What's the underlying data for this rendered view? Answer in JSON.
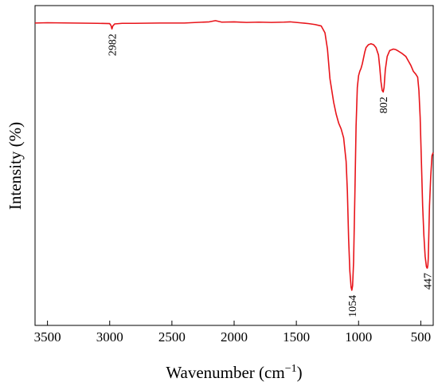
{
  "chart_data": {
    "type": "line",
    "xlabel": "Wavenumber (cm",
    "xlabel_sup": "−1",
    "xlabel_close": ")",
    "ylabel": "Intensity (%)",
    "xlim": [
      3600,
      400
    ],
    "x_reversed": true,
    "ylim": [
      0,
      100
    ],
    "y_ticks_shown": false,
    "x_ticks": [
      3500,
      3000,
      2500,
      2000,
      1500,
      1000,
      500
    ],
    "grid": false,
    "legend": "none",
    "line_color": "#e8141a",
    "series": [
      {
        "x": [
          3600,
          3500,
          3300,
          3100,
          3000,
          2990,
          2982,
          2975,
          2960,
          2900,
          2800,
          2600,
          2400,
          2300,
          2200,
          2150,
          2100,
          2000,
          1900,
          1800,
          1700,
          1600,
          1550,
          1500,
          1450,
          1400,
          1350,
          1300,
          1270,
          1250,
          1230,
          1200,
          1180,
          1160,
          1140,
          1120,
          1100,
          1090,
          1080,
          1070,
          1060,
          1054,
          1048,
          1040,
          1030,
          1020,
          1010,
          1000,
          990,
          980,
          970,
          960,
          950,
          940,
          920,
          900,
          880,
          860,
          840,
          830,
          820,
          810,
          802,
          795,
          785,
          770,
          750,
          720,
          700,
          680,
          650,
          620,
          600,
          580,
          560,
          540,
          525,
          515,
          505,
          495,
          485,
          475,
          465,
          455,
          450,
          447,
          443,
          440,
          430,
          420,
          410,
          400
        ],
        "y": [
          96.8,
          96.9,
          96.8,
          96.7,
          96.6,
          96.0,
          94.8,
          95.8,
          96.5,
          96.7,
          96.7,
          96.8,
          96.8,
          97.0,
          97.2,
          97.6,
          97.1,
          97.2,
          97.0,
          97.1,
          97.0,
          97.1,
          97.2,
          97.0,
          96.8,
          96.6,
          96.3,
          95.8,
          93.5,
          88.0,
          78.0,
          70.0,
          66.0,
          63.0,
          61.0,
          58.0,
          50.0,
          40.0,
          24.0,
          13.0,
          7.5,
          6.5,
          8.0,
          16.0,
          38.0,
          62.0,
          75.0,
          79.0,
          80.5,
          81.5,
          83.0,
          85.0,
          87.0,
          88.5,
          89.5,
          89.8,
          89.5,
          88.5,
          86.0,
          82.0,
          77.0,
          74.0,
          73.5,
          75.0,
          81.0,
          85.5,
          87.5,
          88.0,
          87.8,
          87.3,
          86.5,
          85.5,
          84.0,
          82.5,
          80.5,
          79.5,
          78.5,
          74.0,
          65.0,
          50.0,
          35.0,
          25.0,
          18.0,
          14.5,
          14.0,
          14.0,
          15.0,
          17.0,
          35.0,
          45.0,
          52.0,
          53.0
        ]
      }
    ],
    "annotations": [
      {
        "text": "2982",
        "x": 2982,
        "y": 94.8
      },
      {
        "text": "802",
        "x": 802,
        "y": 73.5
      },
      {
        "text": "1054",
        "x": 1054,
        "y": 6.5
      },
      {
        "text": "447",
        "x": 447,
        "y": 14.0
      }
    ]
  }
}
